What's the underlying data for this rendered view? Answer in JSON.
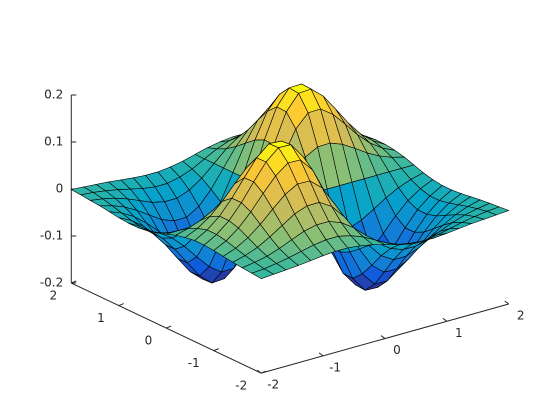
{
  "chart_data": {
    "type": "surface",
    "colormap": "parula",
    "edge_color": "#000000",
    "view": [
      -37.5,
      30
    ],
    "x": [
      -2,
      -1.8,
      -1.6,
      -1.4,
      -1.2,
      -1,
      -0.8,
      -0.6,
      -0.4,
      -0.2,
      0,
      0.2,
      0.4,
      0.6,
      0.8,
      1,
      1.2,
      1.4,
      1.6,
      1.8,
      2
    ],
    "y": [
      -2,
      -1.8,
      -1.6,
      -1.4,
      -1.2,
      -1,
      -0.8,
      -0.6,
      -0.4,
      -0.2,
      0,
      0.2,
      0.4,
      0.6,
      0.8,
      1,
      1.2,
      1.4,
      1.6,
      1.8,
      2
    ],
    "z": [
      [
        0.001,
        0.003,
        0.005,
        0.007,
        0.01,
        0.013,
        0.015,
        0.015,
        0.012,
        0.007,
        0,
        -0.007,
        -0.012,
        -0.015,
        -0.015,
        -0.013,
        -0.01,
        -0.007,
        -0.005,
        -0.003,
        -0.001
      ],
      [
        0.003,
        0.005,
        0.009,
        0.014,
        0.02,
        0.026,
        0.03,
        0.03,
        0.024,
        0.014,
        0,
        -0.014,
        -0.024,
        -0.03,
        -0.03,
        -0.026,
        -0.02,
        -0.014,
        -0.009,
        -0.005,
        -0.003
      ],
      [
        0.005,
        0.009,
        0.015,
        0.024,
        0.035,
        0.046,
        0.052,
        0.052,
        0.042,
        0.024,
        0,
        -0.024,
        -0.042,
        -0.052,
        -0.052,
        -0.046,
        -0.035,
        -0.024,
        -0.015,
        -0.009,
        -0.005
      ],
      [
        0.007,
        0.014,
        0.024,
        0.039,
        0.056,
        0.073,
        0.083,
        0.083,
        0.067,
        0.038,
        0,
        -0.038,
        -0.067,
        -0.083,
        -0.083,
        -0.073,
        -0.056,
        -0.039,
        -0.024,
        -0.014,
        -0.007
      ],
      [
        0.01,
        0.02,
        0.035,
        0.056,
        0.081,
        0.105,
        0.12,
        0.119,
        0.097,
        0.055,
        0,
        -0.055,
        -0.097,
        -0.119,
        -0.12,
        -0.105,
        -0.081,
        -0.056,
        -0.035,
        -0.02,
        -0.01
      ],
      [
        0.013,
        0.026,
        0.046,
        0.073,
        0.105,
        0.135,
        0.155,
        0.154,
        0.125,
        0.071,
        0,
        -0.071,
        -0.125,
        -0.154,
        -0.155,
        -0.135,
        -0.105,
        -0.073,
        -0.046,
        -0.026,
        -0.013
      ],
      [
        0.015,
        0.03,
        0.052,
        0.083,
        0.12,
        0.155,
        0.178,
        0.177,
        0.144,
        0.081,
        0,
        -0.081,
        -0.144,
        -0.177,
        -0.178,
        -0.155,
        -0.12,
        -0.083,
        -0.052,
        -0.03,
        -0.015
      ],
      [
        0.015,
        0.03,
        0.052,
        0.083,
        0.119,
        0.154,
        0.177,
        0.175,
        0.143,
        0.08,
        0,
        -0.08,
        -0.143,
        -0.175,
        -0.177,
        -0.154,
        -0.119,
        -0.083,
        -0.052,
        -0.03,
        -0.015
      ],
      [
        0.012,
        0.024,
        0.042,
        0.067,
        0.097,
        0.125,
        0.144,
        0.143,
        0.116,
        0.066,
        0,
        -0.066,
        -0.116,
        -0.143,
        -0.144,
        -0.125,
        -0.097,
        -0.067,
        -0.042,
        -0.024,
        -0.012
      ],
      [
        0.007,
        0.014,
        0.024,
        0.038,
        0.055,
        0.071,
        0.081,
        0.08,
        0.066,
        0.037,
        0,
        -0.037,
        -0.066,
        -0.08,
        -0.081,
        -0.071,
        -0.055,
        -0.038,
        -0.024,
        -0.014,
        -0.007
      ],
      [
        0,
        0,
        0,
        0,
        0,
        0,
        0,
        0,
        0,
        0,
        0,
        0,
        0,
        0,
        0,
        0,
        0,
        0,
        0,
        0,
        0
      ],
      [
        -0.007,
        -0.014,
        -0.024,
        -0.038,
        -0.055,
        -0.071,
        -0.081,
        -0.08,
        -0.066,
        -0.037,
        0,
        0.037,
        0.066,
        0.08,
        0.081,
        0.071,
        0.055,
        0.038,
        0.024,
        0.014,
        0.007
      ],
      [
        -0.012,
        -0.024,
        -0.042,
        -0.067,
        -0.097,
        -0.125,
        -0.144,
        -0.143,
        -0.116,
        -0.066,
        0,
        0.066,
        0.116,
        0.143,
        0.144,
        0.125,
        0.097,
        0.067,
        0.042,
        0.024,
        0.012
      ],
      [
        -0.015,
        -0.03,
        -0.052,
        -0.083,
        -0.119,
        -0.154,
        -0.177,
        -0.175,
        -0.143,
        -0.08,
        0,
        0.08,
        0.143,
        0.175,
        0.177,
        0.154,
        0.119,
        0.083,
        0.052,
        0.03,
        0.015
      ],
      [
        -0.015,
        -0.03,
        -0.052,
        -0.083,
        -0.12,
        -0.155,
        -0.178,
        -0.177,
        -0.144,
        -0.081,
        0,
        0.081,
        0.144,
        0.177,
        0.178,
        0.155,
        0.12,
        0.083,
        0.052,
        0.03,
        0.015
      ],
      [
        -0.013,
        -0.026,
        -0.046,
        -0.073,
        -0.105,
        -0.135,
        -0.155,
        -0.154,
        -0.125,
        -0.071,
        0,
        0.071,
        0.125,
        0.154,
        0.155,
        0.135,
        0.105,
        0.073,
        0.046,
        0.026,
        0.013
      ],
      [
        -0.01,
        -0.02,
        -0.035,
        -0.056,
        -0.081,
        -0.105,
        -0.12,
        -0.119,
        -0.097,
        -0.055,
        0,
        0.055,
        0.097,
        0.119,
        0.12,
        0.105,
        0.081,
        0.056,
        0.035,
        0.02,
        0.01
      ],
      [
        -0.007,
        -0.014,
        -0.024,
        -0.039,
        -0.056,
        -0.073,
        -0.083,
        -0.083,
        -0.067,
        -0.038,
        0,
        0.038,
        0.067,
        0.083,
        0.083,
        0.073,
        0.056,
        0.039,
        0.024,
        0.014,
        0.007
      ],
      [
        -0.005,
        -0.009,
        -0.015,
        -0.024,
        -0.035,
        -0.046,
        -0.052,
        -0.052,
        -0.042,
        -0.024,
        0,
        0.024,
        0.042,
        0.052,
        0.052,
        0.046,
        0.035,
        0.024,
        0.015,
        0.009,
        0.005
      ],
      [
        -0.003,
        -0.005,
        -0.009,
        -0.014,
        -0.02,
        -0.026,
        -0.03,
        -0.03,
        -0.024,
        -0.014,
        0,
        0.014,
        0.024,
        0.03,
        0.03,
        0.026,
        0.02,
        0.014,
        0.009,
        0.005,
        0.003
      ],
      [
        -0.001,
        -0.003,
        -0.005,
        -0.007,
        -0.01,
        -0.013,
        -0.015,
        -0.015,
        -0.012,
        -0.007,
        0,
        0.007,
        0.012,
        0.015,
        0.015,
        0.013,
        0.01,
        0.007,
        0.005,
        0.003,
        0.001
      ]
    ],
    "xlim": [
      -2,
      2
    ],
    "xticks": [
      -2,
      -1,
      0,
      1,
      2
    ],
    "ylim": [
      -2,
      2
    ],
    "yticks": [
      -2,
      -1,
      0,
      1,
      2
    ],
    "zlim": [
      -0.2,
      0.2
    ],
    "zticks": [
      -0.2,
      -0.1,
      0,
      0.1,
      0.2
    ]
  }
}
